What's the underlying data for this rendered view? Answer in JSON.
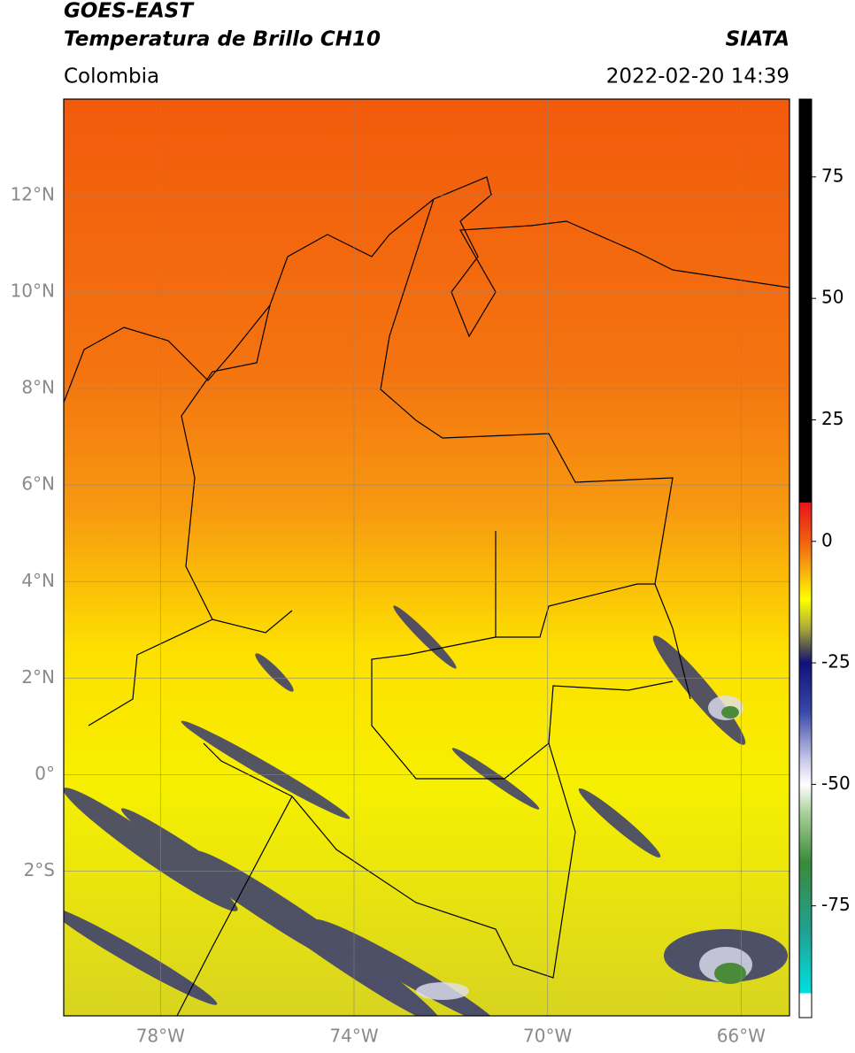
{
  "header": {
    "title": "GOES-EAST",
    "subtitle": "Temperatura de Brillo CH10",
    "source": "SIATA",
    "region": "Colombia",
    "datetime": "2022-02-20 14:39"
  },
  "map": {
    "lonlim": [
      -80,
      -65
    ],
    "latlim": [
      -5,
      14
    ],
    "grid": true,
    "lat_ticks": [
      {
        "value": 12,
        "label": "12°N"
      },
      {
        "value": 10,
        "label": "10°N"
      },
      {
        "value": 8,
        "label": "8°N"
      },
      {
        "value": 6,
        "label": "6°N"
      },
      {
        "value": 4,
        "label": "4°N"
      },
      {
        "value": 2,
        "label": "2°N"
      },
      {
        "value": 0,
        "label": "0°"
      },
      {
        "value": -2,
        "label": "2°S"
      }
    ],
    "lon_ticks": [
      {
        "value": -78,
        "label": "78°W"
      },
      {
        "value": -74,
        "label": "74°W"
      },
      {
        "value": -70,
        "label": "70°W"
      },
      {
        "value": -66,
        "label": "66°W"
      }
    ]
  },
  "colorbar": {
    "lim": [
      -98,
      91
    ],
    "ticks": [
      75,
      50,
      25,
      0,
      -25,
      -50,
      -75
    ],
    "stops": [
      {
        "value": 91,
        "color": "#000000"
      },
      {
        "value": 8,
        "color": "#000000"
      },
      {
        "value": 8,
        "color": "#e8141a"
      },
      {
        "value": 0,
        "color": "#f26010"
      },
      {
        "value": -5,
        "color": "#f7a010"
      },
      {
        "value": -12,
        "color": "#ffff00"
      },
      {
        "value": -18,
        "color": "#a8a838"
      },
      {
        "value": -22,
        "color": "#505050"
      },
      {
        "value": -25,
        "color": "#10107a"
      },
      {
        "value": -35,
        "color": "#3848a8"
      },
      {
        "value": -45,
        "color": "#c8c8e8"
      },
      {
        "value": -50,
        "color": "#ffffff"
      },
      {
        "value": -56,
        "color": "#a8d098"
      },
      {
        "value": -66,
        "color": "#3a8a3a"
      },
      {
        "value": -80,
        "color": "#20a090"
      },
      {
        "value": -93,
        "color": "#00e0e0"
      },
      {
        "value": -93,
        "color": "#ffffff"
      },
      {
        "value": -98,
        "color": "#ffffff"
      }
    ]
  }
}
